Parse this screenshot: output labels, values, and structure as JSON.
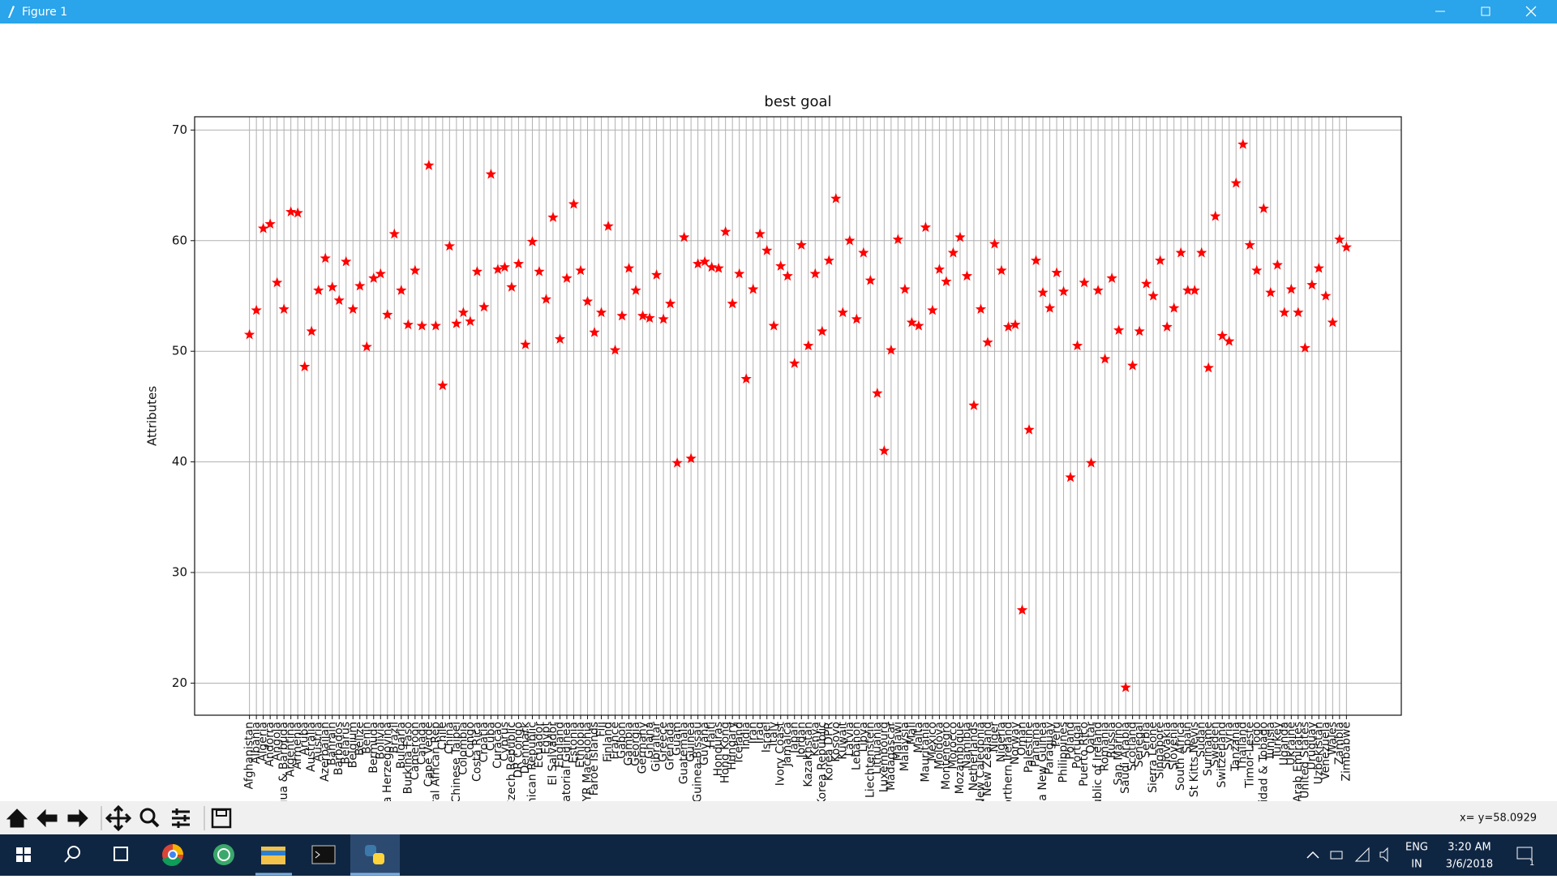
{
  "window": {
    "title": "Figure 1"
  },
  "chart_data": {
    "type": "scatter",
    "title": "best goal",
    "y_label": "Attributes",
    "color": "#ff0000",
    "marker": "*",
    "grid": true,
    "ylim": [
      17.1,
      71.2
    ],
    "yticks": [
      20,
      30,
      40,
      50,
      60,
      70
    ],
    "categories": [
      "Afghanistan",
      "Albania",
      "Algeria",
      "Andorra",
      "Angola",
      "Antigua & Barbuda",
      "Argentina",
      "Armenia",
      "Aruba",
      "Australia",
      "Austria",
      "Azerbaijan",
      "Bahrain",
      "Barbados",
      "Belarus",
      "Belgium",
      "Belize",
      "Benin",
      "Bermuda",
      "Bolivia",
      "Bosnia Herzegovina",
      "Brazil",
      "Bulgaria",
      "Burkina Faso",
      "Cameroon",
      "Canada",
      "Cape Verde",
      "Central African Rep",
      "Chile",
      "China",
      "Chinese Taipei",
      "Colombia",
      "Congo",
      "Costa Rica",
      "Croatia",
      "Cuba",
      "Curacao",
      "Cyprus",
      "Czech Republic",
      "DR Congo",
      "Denmark",
      "Dominican Republic",
      "Ecuador",
      "Egypt",
      "El Salvador",
      "England",
      "Equatorial Guinea",
      "Estonia",
      "Ethiopia",
      "FYR Macedonia",
      "Faroe Islands",
      "Fiji",
      "Finland",
      "France",
      "Gabon",
      "Gambia",
      "Georgia",
      "Germany",
      "Ghana",
      "Gibraltar",
      "Greece",
      "Grenada",
      "Guam",
      "Guatemala",
      "Guinea",
      "Guinea-Bissau",
      "Guyana",
      "Haiti",
      "Honduras",
      "Hong Kong",
      "Hungary",
      "Iceland",
      "India",
      "Iran",
      "Iraq",
      "Israel",
      "Italy",
      "Ivory Coast",
      "Jamaica",
      "Japan",
      "Jordan",
      "Kazakhstan",
      "Kenya",
      "Korea Republic",
      "Korea DPR",
      "Kosovo",
      "Kuwait",
      "Latvia",
      "Lebanon",
      "Libya",
      "Liechtenstein",
      "Lithuania",
      "Luxembourg",
      "Madagascar",
      "Malawi",
      "Malaysia",
      "Mali",
      "Malta",
      "Mauritania",
      "Mexico",
      "Moldova",
      "Montenegro",
      "Morocco",
      "Mozambique",
      "Namibia",
      "Netherlands",
      "New Caledonia",
      "New Zealand",
      "Niger",
      "Nigeria",
      "Northern Ireland",
      "Norway",
      "Oman",
      "Palestine",
      "Panama",
      "Papua New Guinea",
      "Paraguay",
      "Peru",
      "Philippines",
      "Poland",
      "Portugal",
      "Puerto Rico",
      "Qatar",
      "Republic of Ireland",
      "Romania",
      "Russia",
      "San Marino",
      "Saudi Arabia",
      "Scotland",
      "Senegal",
      "Serbia",
      "Sierra Leone",
      "Singapore",
      "Slovakia",
      "Slovenia",
      "South Africa",
      "Spain",
      "St Kitts Nevis",
      "Sudan",
      "Suriname",
      "Sweden",
      "Switzerland",
      "Syria",
      "Tanzania",
      "Thailand",
      "Timor-Leste",
      "Togo",
      "Trinidad & Tobago",
      "Tunisia",
      "Turkey",
      "Uganda",
      "Ukraine",
      "United Arab Emirates",
      "United States",
      "Uruguay",
      "Uzbekistan",
      "Venezuela",
      "Wales",
      "Zambia",
      "Zimbabwe"
    ],
    "values": [
      51.5,
      53.7,
      61.1,
      61.5,
      56.2,
      53.8,
      62.6,
      62.5,
      48.6,
      51.8,
      55.5,
      58.4,
      55.8,
      54.6,
      58.1,
      53.8,
      55.9,
      50.4,
      56.6,
      57.0,
      53.3,
      60.6,
      55.5,
      52.4,
      57.3,
      52.3,
      66.8,
      52.3,
      46.9,
      59.5,
      52.5,
      53.5,
      52.7,
      57.2,
      54.0,
      66.0,
      57.4,
      57.6,
      55.8,
      57.9,
      50.6,
      59.9,
      57.2,
      54.7,
      62.1,
      51.1,
      56.6,
      63.3,
      57.3,
      54.5,
      51.7,
      53.5,
      61.3,
      50.1,
      53.2,
      57.5,
      55.5,
      53.2,
      53.0,
      56.9,
      52.9,
      54.3,
      39.9,
      60.3,
      40.3,
      57.9,
      58.1,
      57.6,
      57.5,
      60.8,
      54.3,
      57.0,
      47.5,
      55.6,
      60.6,
      59.1,
      52.3,
      57.7,
      56.8,
      48.9,
      59.6,
      50.5,
      57.0,
      51.8,
      58.2,
      63.8,
      53.5,
      60.0,
      52.9,
      58.9,
      56.4,
      46.2,
      41.0,
      50.1,
      60.1,
      55.6,
      52.6,
      52.3,
      61.2,
      53.7,
      57.4,
      56.3,
      58.9,
      60.3,
      56.8,
      45.1,
      53.8,
      50.8,
      59.7,
      57.3,
      52.2,
      52.4,
      26.6,
      42.9,
      58.2,
      55.3,
      53.9,
      57.1,
      55.4,
      38.6,
      50.5,
      56.2,
      39.9,
      55.5,
      49.3,
      56.6,
      51.9,
      19.6,
      48.7,
      51.8,
      56.1,
      55.0,
      58.2,
      52.2,
      53.9,
      58.9,
      55.5,
      55.5,
      58.9,
      48.5,
      62.2,
      51.4,
      50.9,
      65.2,
      68.7,
      59.6,
      57.3,
      62.9,
      55.3,
      57.8,
      53.5,
      55.6,
      53.5,
      50.3,
      56.0,
      57.5,
      55.0,
      52.6,
      60.1,
      59.4
    ]
  },
  "status": "x= y=58.0929",
  "taskbar": {
    "language": "ENG",
    "region": "IN",
    "time": "3:20 AM",
    "date": "3/6/2018",
    "notifications": "1"
  }
}
